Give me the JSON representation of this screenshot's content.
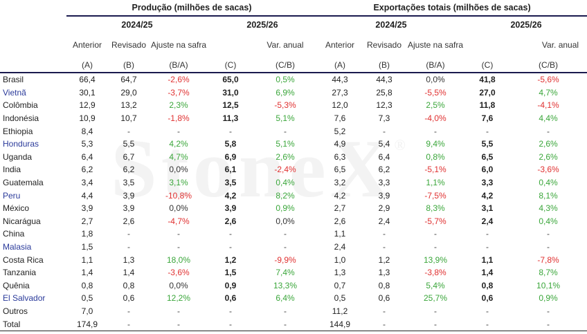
{
  "watermark": "StoneX",
  "watermark_mark": "®",
  "groups": {
    "production": "Produção (milhões de sacas)",
    "exports": "Exportações totais (milhões de sacas)"
  },
  "years": {
    "y1": "2024/25",
    "y2": "2025/26"
  },
  "columns": {
    "anterior": "Anterior",
    "revisado": "Revisado",
    "ajuste": "Ajuste na safra",
    "var": "Var. anual",
    "code_a": "(A)",
    "code_b": "(B)",
    "code_ba": "(B/A)",
    "code_c": "(C)",
    "code_cb": "(C/B)"
  },
  "rows": [
    {
      "country": "Brasil",
      "hl": false,
      "p": [
        "66,4",
        "64,7",
        "-2,6%",
        "65,0",
        "0,5%"
      ],
      "e": [
        "44,3",
        "44,3",
        "0,0%",
        "41,8",
        "-5,6%"
      ]
    },
    {
      "country": "Vietnã",
      "hl": true,
      "p": [
        "30,1",
        "29,0",
        "-3,7%",
        "31,0",
        "6,9%"
      ],
      "e": [
        "27,3",
        "25,8",
        "-5,5%",
        "27,0",
        "4,7%"
      ]
    },
    {
      "country": "Colômbia",
      "hl": false,
      "p": [
        "12,9",
        "13,2",
        "2,3%",
        "12,5",
        "-5,3%"
      ],
      "e": [
        "12,0",
        "12,3",
        "2,5%",
        "11,8",
        "-4,1%"
      ]
    },
    {
      "country": "Indonésia",
      "hl": false,
      "p": [
        "10,9",
        "10,7",
        "-1,8%",
        "11,3",
        "5,1%"
      ],
      "e": [
        "7,6",
        "7,3",
        "-4,0%",
        "7,6",
        "4,4%"
      ]
    },
    {
      "country": "Ethiopia",
      "hl": false,
      "p": [
        "8,4",
        "-",
        "-",
        "-",
        "-"
      ],
      "e": [
        "5,2",
        "-",
        "-",
        "-",
        "-"
      ]
    },
    {
      "country": "Honduras",
      "hl": true,
      "p": [
        "5,3",
        "5,5",
        "4,2%",
        "5,8",
        "5,1%"
      ],
      "e": [
        "4,9",
        "5,4",
        "9,4%",
        "5,5",
        "2,6%"
      ]
    },
    {
      "country": "Uganda",
      "hl": false,
      "p": [
        "6,4",
        "6,7",
        "4,7%",
        "6,9",
        "2,6%"
      ],
      "e": [
        "6,3",
        "6,4",
        "0,8%",
        "6,5",
        "2,6%"
      ]
    },
    {
      "country": "India",
      "hl": false,
      "p": [
        "6,2",
        "6,2",
        "0,0%",
        "6,1",
        "-2,4%"
      ],
      "e": [
        "6,5",
        "6,2",
        "-5,1%",
        "6,0",
        "-3,6%"
      ]
    },
    {
      "country": "Guatemala",
      "hl": false,
      "p": [
        "3,4",
        "3,5",
        "3,1%",
        "3,5",
        "0,4%"
      ],
      "e": [
        "3,2",
        "3,3",
        "1,1%",
        "3,3",
        "0,4%"
      ]
    },
    {
      "country": "Peru",
      "hl": true,
      "p": [
        "4,4",
        "3,9",
        "-10,8%",
        "4,2",
        "8,2%"
      ],
      "e": [
        "4,2",
        "3,9",
        "-7,5%",
        "4,2",
        "8,1%"
      ]
    },
    {
      "country": "México",
      "hl": false,
      "p": [
        "3,9",
        "3,9",
        "0,0%",
        "3,9",
        "0,9%"
      ],
      "e": [
        "2,7",
        "2,9",
        "8,3%",
        "3,1",
        "4,3%"
      ]
    },
    {
      "country": "Nicarágua",
      "hl": false,
      "p": [
        "2,7",
        "2,6",
        "-4,7%",
        "2,6",
        "0,0%"
      ],
      "e": [
        "2,6",
        "2,4",
        "-5,7%",
        "2,4",
        "0,4%"
      ]
    },
    {
      "country": "China",
      "hl": false,
      "p": [
        "1,8",
        "-",
        "-",
        "-",
        "-"
      ],
      "e": [
        "1,1",
        "-",
        "-",
        "-",
        "-"
      ]
    },
    {
      "country": "Malasia",
      "hl": true,
      "p": [
        "1,5",
        "-",
        "-",
        "-",
        "-"
      ],
      "e": [
        "2,4",
        "-",
        "-",
        "-",
        "-"
      ]
    },
    {
      "country": "Costa Rica",
      "hl": false,
      "p": [
        "1,1",
        "1,3",
        "18,0%",
        "1,2",
        "-9,9%"
      ],
      "e": [
        "1,0",
        "1,2",
        "13,9%",
        "1,1",
        "-7,8%"
      ]
    },
    {
      "country": "Tanzania",
      "hl": false,
      "p": [
        "1,4",
        "1,4",
        "-3,6%",
        "1,5",
        "7,4%"
      ],
      "e": [
        "1,3",
        "1,3",
        "-3,8%",
        "1,4",
        "8,7%"
      ]
    },
    {
      "country": "Quênia",
      "hl": false,
      "p": [
        "0,8",
        "0,8",
        "0,0%",
        "0,9",
        "13,3%"
      ],
      "e": [
        "0,7",
        "0,8",
        "5,4%",
        "0,8",
        "10,1%"
      ]
    },
    {
      "country": "El Salvador",
      "hl": true,
      "p": [
        "0,5",
        "0,6",
        "12,2%",
        "0,6",
        "6,4%"
      ],
      "e": [
        "0,5",
        "0,6",
        "25,7%",
        "0,6",
        "0,9%"
      ]
    },
    {
      "country": "Outros",
      "hl": false,
      "p": [
        "7,0",
        "-",
        "-",
        "-",
        "-"
      ],
      "e": [
        "11,2",
        "-",
        "-",
        "-",
        "-"
      ]
    },
    {
      "country": "Total",
      "hl": false,
      "p": [
        "174,9",
        "-",
        "-",
        "-",
        "-"
      ],
      "e": [
        "144,9",
        "-",
        "-",
        "-",
        "-"
      ]
    }
  ]
}
